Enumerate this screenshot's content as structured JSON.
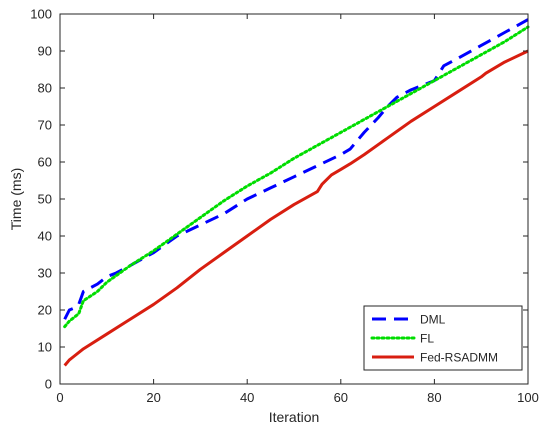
{
  "chart_data": {
    "type": "line",
    "title": "",
    "xlabel": "Iteration",
    "ylabel": "Time (ms)",
    "xlim": [
      0,
      100
    ],
    "ylim": [
      0,
      100
    ],
    "xticks": [
      0,
      20,
      40,
      60,
      80,
      100
    ],
    "yticks": [
      0,
      10,
      20,
      30,
      40,
      50,
      60,
      70,
      80,
      90,
      100
    ],
    "grid": false,
    "legend_position": "bottom-right",
    "series": [
      {
        "name": "DML",
        "color": "#0000ff",
        "style": "dashed",
        "x": [
          1,
          2,
          3,
          4,
          5,
          8,
          10,
          12,
          15,
          20,
          25,
          30,
          35,
          40,
          45,
          50,
          55,
          60,
          62,
          65,
          68,
          70,
          72,
          75,
          78,
          80,
          82,
          85,
          90,
          95,
          100
        ],
        "y": [
          17.5,
          20,
          20.5,
          21.5,
          25,
          27,
          29,
          30,
          32,
          35.5,
          40,
          43,
          46,
          50,
          53,
          56,
          59,
          62,
          63.5,
          68,
          72,
          75,
          77.5,
          79.5,
          81,
          82,
          86,
          88,
          91.5,
          95,
          98.5
        ]
      },
      {
        "name": "FL",
        "color": "#00dd00",
        "style": "dotted",
        "x": [
          1,
          2,
          3,
          4,
          5,
          8,
          10,
          15,
          20,
          25,
          30,
          35,
          40,
          45,
          50,
          55,
          60,
          65,
          70,
          75,
          80,
          85,
          90,
          95,
          100
        ],
        "y": [
          15.5,
          17,
          18,
          19,
          22.5,
          25,
          27.5,
          32,
          36,
          40.5,
          45,
          49.5,
          53.5,
          57,
          61,
          64.5,
          68,
          71.5,
          75,
          78.5,
          82,
          85.5,
          89,
          92.5,
          96.5
        ]
      },
      {
        "name": "Fed-RSADMM",
        "color": "#d81e10",
        "style": "solid",
        "x": [
          1,
          2,
          3,
          5,
          10,
          15,
          20,
          25,
          30,
          35,
          40,
          45,
          50,
          55,
          56,
          58,
          60,
          62,
          65,
          70,
          75,
          80,
          85,
          90,
          91,
          95,
          100
        ],
        "y": [
          5,
          6.5,
          7.5,
          9.5,
          13.5,
          17.5,
          21.5,
          26,
          31,
          35.5,
          40,
          44.5,
          48.5,
          52,
          54,
          56.5,
          58,
          59.5,
          62,
          66.5,
          71,
          75,
          79,
          83,
          84,
          87,
          90
        ]
      }
    ]
  }
}
